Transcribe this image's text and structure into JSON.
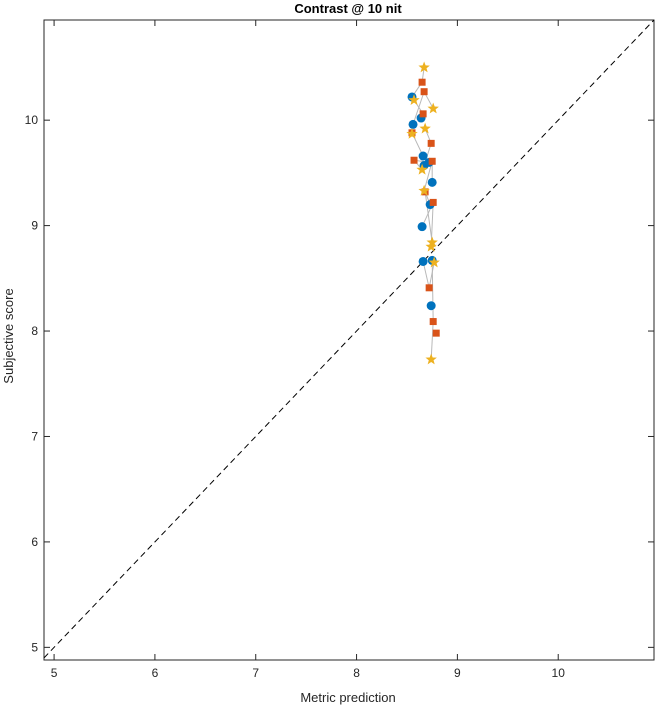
{
  "chart_data": {
    "type": "scatter",
    "title": "Contrast @ 10 nit",
    "xlabel": "Metric prediction",
    "ylabel": "Subjective score",
    "xlim": [
      4.9,
      10.95
    ],
    "ylim": [
      4.88,
      10.95
    ],
    "xticks": [
      5,
      6,
      7,
      8,
      9,
      10
    ],
    "yticks": [
      5,
      6,
      7,
      8,
      9,
      10
    ],
    "grid": false,
    "box": true,
    "reference_line": {
      "style": "dashed",
      "from": [
        4.9,
        4.9
      ],
      "to": [
        10.95,
        10.95
      ],
      "color": "#000000"
    },
    "connector_color": "#b8b8b8",
    "series": [
      {
        "marker": "circle",
        "color": "#0072BD",
        "points": [
          [
            8.55,
            10.22
          ],
          [
            8.56,
            9.96
          ],
          [
            8.64,
            10.02
          ],
          [
            8.66,
            9.66
          ],
          [
            8.67,
            9.57
          ],
          [
            8.72,
            9.6
          ],
          [
            8.75,
            9.41
          ],
          [
            8.73,
            9.2
          ],
          [
            8.65,
            8.99
          ],
          [
            8.66,
            8.66
          ],
          [
            8.75,
            8.67
          ],
          [
            8.74,
            8.24
          ]
        ]
      },
      {
        "marker": "square",
        "color": "#D95319",
        "points": [
          [
            8.65,
            10.36
          ],
          [
            8.67,
            10.27
          ],
          [
            8.66,
            10.06
          ],
          [
            8.55,
            9.88
          ],
          [
            8.74,
            9.78
          ],
          [
            8.57,
            9.62
          ],
          [
            8.75,
            9.61
          ],
          [
            8.68,
            9.32
          ],
          [
            8.76,
            9.22
          ],
          [
            8.72,
            8.41
          ],
          [
            8.76,
            8.09
          ],
          [
            8.79,
            7.98
          ]
        ]
      },
      {
        "marker": "star",
        "color": "#EDB120",
        "points": [
          [
            8.67,
            10.5
          ],
          [
            8.76,
            10.11
          ],
          [
            8.57,
            10.19
          ],
          [
            8.55,
            9.87
          ],
          [
            8.68,
            9.92
          ],
          [
            8.65,
            9.53
          ],
          [
            8.67,
            9.33
          ],
          [
            8.75,
            8.84
          ],
          [
            8.74,
            8.8
          ],
          [
            8.77,
            8.65
          ],
          [
            8.74,
            7.73
          ]
        ]
      }
    ]
  }
}
